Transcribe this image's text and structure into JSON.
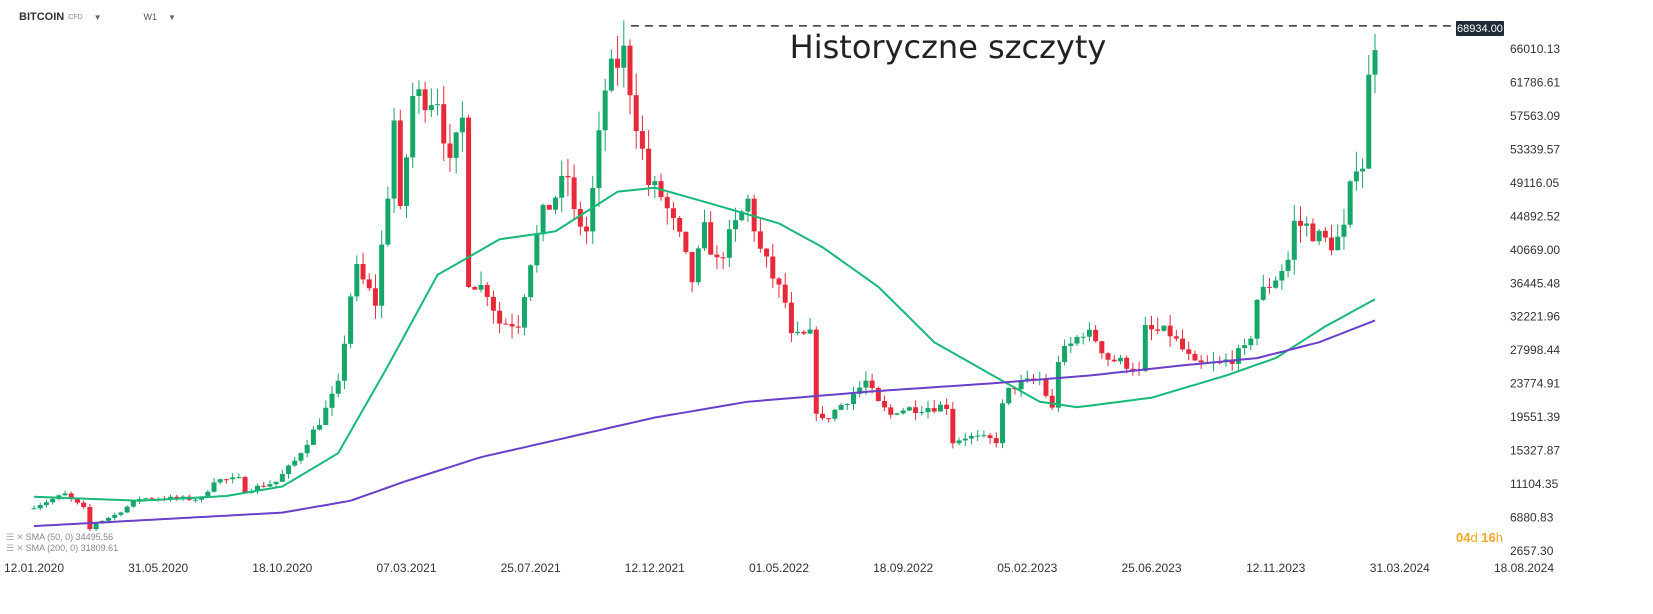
{
  "toolbar": {
    "symbol": "BITCOIN",
    "symbol_type": "CFD",
    "timeframe": "W1"
  },
  "legend": [
    {
      "text": "SMA (50, 0) 34495.56",
      "color": "#16b978"
    },
    {
      "text": "SMA (200, 0) 31809.61",
      "color": "#6a3fc9"
    }
  ],
  "countdown": {
    "days": "04",
    "days_unit": "d",
    "hours": "16",
    "hours_unit": "h"
  },
  "chart_data": {
    "type": "candlestick",
    "title": "Historyczne szczyty",
    "price_tag": "68934.00",
    "ylim": [
      2657.3,
      70000
    ],
    "y_ticks": [
      "66010.13",
      "61786.61",
      "57563.09",
      "53339.57",
      "49116.05",
      "44892.52",
      "40669.00",
      "36445.48",
      "32221.96",
      "27998.44",
      "23774.91",
      "19551.39",
      "15327.87",
      "11104.35",
      "6880.83",
      "2657.30"
    ],
    "y_tick_values": [
      66010.13,
      61786.61,
      57563.09,
      53339.57,
      49116.05,
      44892.52,
      40669.0,
      36445.48,
      32221.96,
      27998.44,
      23774.91,
      19551.39,
      15327.87,
      11104.35,
      6880.83,
      2657.3
    ],
    "x_ticks": [
      "12.01.2020",
      "31.05.2020",
      "18.10.2020",
      "07.03.2021",
      "25.07.2021",
      "12.12.2021",
      "01.05.2022",
      "18.09.2022",
      "05.02.2023",
      "25.06.2023",
      "12.11.2023",
      "31.03.2024",
      "18.08.2024"
    ],
    "up_color": "#16a66a",
    "down_color": "#e8293a",
    "resistance_level": 68934.0,
    "resistance_from": "15.11.2021",
    "close_anchors": [
      [
        "12.01.2020",
        8300
      ],
      [
        "16.02.2020",
        9800
      ],
      [
        "08.03.2020",
        8000
      ],
      [
        "15.03.2020",
        5400
      ],
      [
        "22.03.2020",
        6200
      ],
      [
        "12.04.2020",
        7200
      ],
      [
        "10.05.2020",
        9300
      ],
      [
        "21.06.2020",
        9300
      ],
      [
        "19.07.2020",
        9200
      ],
      [
        "02.08.2020",
        11600
      ],
      [
        "30.08.2020",
        11700
      ],
      [
        "06.09.2020",
        10300
      ],
      [
        "11.10.2020",
        11400
      ],
      [
        "01.11.2020",
        14000
      ],
      [
        "29.11.2020",
        19000
      ],
      [
        "20.12.2020",
        23500
      ],
      [
        "03.01.2021",
        35000
      ],
      [
        "10.01.2021",
        38000
      ],
      [
        "31.01.2021",
        34000
      ],
      [
        "14.02.2021",
        48000
      ],
      [
        "21.02.2021",
        57000
      ],
      [
        "28.02.2021",
        45000
      ],
      [
        "14.03.2021",
        60000
      ],
      [
        "11.04.2021",
        60000
      ],
      [
        "25.04.2021",
        51000
      ],
      [
        "09.05.2021",
        57000
      ],
      [
        "16.05.2021",
        37000
      ],
      [
        "06.06.2021",
        35500
      ],
      [
        "20.06.2021",
        31500
      ],
      [
        "11.07.2021",
        31500
      ],
      [
        "25.07.2021",
        39500
      ],
      [
        "08.08.2021",
        45000
      ],
      [
        "05.09.2021",
        50000
      ],
      [
        "12.09.2021",
        45000
      ],
      [
        "26.09.2021",
        43000
      ],
      [
        "03.10.2021",
        48000
      ],
      [
        "17.10.2021",
        61000
      ],
      [
        "24.10.2021",
        63000
      ],
      [
        "07.11.2021",
        65500
      ],
      [
        "21.11.2021",
        57000
      ],
      [
        "05.12.2021",
        49000
      ],
      [
        "19.12.2021",
        47500
      ],
      [
        "09.01.2022",
        42000
      ],
      [
        "23.01.2022",
        36800
      ],
      [
        "06.02.2022",
        43000
      ],
      [
        "20.02.2022",
        39000
      ],
      [
        "27.03.2022",
        46800
      ],
      [
        "10.04.2022",
        40500
      ],
      [
        "08.05.2022",
        34000
      ],
      [
        "15.05.2022",
        29500
      ],
      [
        "05.06.2022",
        29800
      ],
      [
        "12.06.2022",
        20500
      ],
      [
        "19.06.2022",
        19000
      ],
      [
        "17.07.2022",
        21800
      ],
      [
        "07.08.2022",
        24000
      ],
      [
        "21.08.2022",
        21200
      ],
      [
        "04.09.2022",
        19800
      ],
      [
        "11.09.2022",
        20500
      ],
      [
        "06.11.2022",
        21000
      ],
      [
        "13.11.2022",
        16500
      ],
      [
        "27.11.2022",
        17100
      ],
      [
        "01.01.2023",
        16600
      ],
      [
        "08.01.2023",
        20900
      ],
      [
        "15.01.2023",
        22800
      ],
      [
        "22.01.2023",
        23500
      ],
      [
        "19.02.2023",
        24300
      ],
      [
        "05.03.2023",
        20500
      ],
      [
        "12.03.2023",
        26900
      ],
      [
        "19.03.2023",
        27800
      ],
      [
        "09.04.2023",
        30400
      ],
      [
        "23.04.2023",
        29400
      ],
      [
        "07.05.2023",
        27000
      ],
      [
        "04.06.2023",
        26000
      ],
      [
        "11.06.2023",
        25000
      ],
      [
        "18.06.2023",
        30500
      ],
      [
        "16.07.2023",
        30100
      ],
      [
        "13.08.2023",
        26000
      ],
      [
        "20.08.2023",
        26100
      ],
      [
        "10.09.2023",
        26200
      ],
      [
        "08.10.2023",
        27900
      ],
      [
        "15.10.2023",
        30000
      ],
      [
        "22.10.2023",
        34500
      ],
      [
        "12.11.2023",
        37200
      ],
      [
        "26.11.2023",
        39400
      ],
      [
        "03.12.2023",
        44000
      ],
      [
        "17.12.2023",
        43600
      ],
      [
        "31.12.2023",
        42200
      ],
      [
        "07.01.2024",
        41800
      ],
      [
        "14.01.2024",
        41500
      ],
      [
        "21.01.2024",
        42000
      ],
      [
        "28.01.2024",
        43000
      ],
      [
        "04.02.2024",
        48000
      ],
      [
        "11.02.2024",
        52000
      ],
      [
        "18.02.2024",
        51600
      ],
      [
        "25.02.2024",
        62000
      ],
      [
        "04.03.2024",
        68200
      ]
    ],
    "sma50_anchors": [
      [
        "12.01.2020",
        9500
      ],
      [
        "10.05.2020",
        9000
      ],
      [
        "16.08.2020",
        9600
      ],
      [
        "18.10.2020",
        10800
      ],
      [
        "20.12.2020",
        15000
      ],
      [
        "14.02.2021",
        26000
      ],
      [
        "11.04.2021",
        37500
      ],
      [
        "20.06.2021",
        42000
      ],
      [
        "22.08.2021",
        43000
      ],
      [
        "31.10.2021",
        48000
      ],
      [
        "12.12.2021",
        48500
      ],
      [
        "13.02.2022",
        46500
      ],
      [
        "01.05.2022",
        44000
      ],
      [
        "19.06.2022",
        41000
      ],
      [
        "21.08.2022",
        36000
      ],
      [
        "23.10.2022",
        29000
      ],
      [
        "25.12.2022",
        25000
      ],
      [
        "19.02.2023",
        21500
      ],
      [
        "02.04.2023",
        20800
      ],
      [
        "25.06.2023",
        22000
      ],
      [
        "17.09.2023",
        24800
      ],
      [
        "12.11.2023",
        27000
      ],
      [
        "07.01.2024",
        31000
      ],
      [
        "04.03.2024",
        34500
      ]
    ],
    "sma200_anchors": [
      [
        "12.01.2020",
        5800
      ],
      [
        "18.10.2020",
        7500
      ],
      [
        "03.01.2021",
        9000
      ],
      [
        "07.03.2021",
        11500
      ],
      [
        "30.05.2021",
        14500
      ],
      [
        "05.09.2021",
        17000
      ],
      [
        "12.12.2021",
        19500
      ],
      [
        "27.03.2022",
        21500
      ],
      [
        "14.08.2022",
        22800
      ],
      [
        "25.12.2022",
        23800
      ],
      [
        "16.04.2023",
        24800
      ],
      [
        "23.07.2023",
        26000
      ],
      [
        "22.10.2023",
        27000
      ],
      [
        "31.12.2023",
        29000
      ],
      [
        "04.03.2024",
        31800
      ]
    ]
  }
}
